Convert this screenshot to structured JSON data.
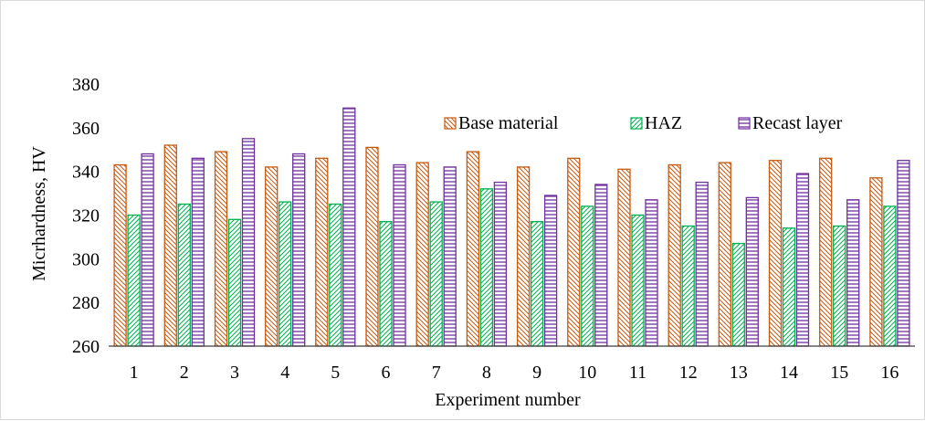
{
  "chart_data": {
    "type": "bar",
    "title": "",
    "xlabel": "Experiment number",
    "ylabel": "Micrhardness, HV",
    "ylim": [
      260,
      380
    ],
    "yticks": [
      260,
      280,
      300,
      320,
      340,
      360,
      380
    ],
    "grid": false,
    "legend_position": "top-right",
    "categories": [
      "1",
      "2",
      "3",
      "4",
      "5",
      "6",
      "7",
      "8",
      "9",
      "10",
      "11",
      "12",
      "13",
      "14",
      "15",
      "16"
    ],
    "series": [
      {
        "name": "Base material",
        "color": "#c55a11",
        "pattern": "diagonal-down",
        "values": [
          343,
          352,
          349,
          342,
          346,
          351,
          344,
          349,
          342,
          346,
          341,
          343,
          344,
          345,
          346,
          337
        ]
      },
      {
        "name": "HAZ",
        "color": "#00b050",
        "pattern": "diagonal-up",
        "values": [
          320,
          325,
          318,
          326,
          325,
          317,
          326,
          332,
          317,
          324,
          320,
          315,
          307,
          314,
          315,
          324
        ]
      },
      {
        "name": "Recast layer",
        "color": "#7030a0",
        "pattern": "horizontal",
        "values": [
          348,
          346,
          355,
          348,
          369,
          343,
          342,
          335,
          329,
          334,
          327,
          335,
          328,
          339,
          327,
          345
        ]
      }
    ]
  }
}
